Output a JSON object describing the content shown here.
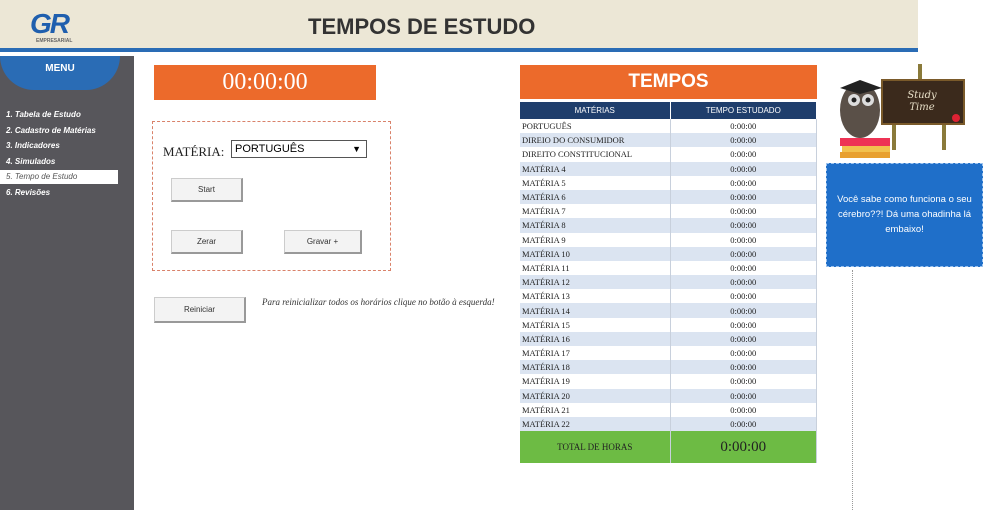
{
  "header": {
    "logo": "GR",
    "logo_sub": "EMPRESARIAL",
    "title": "TEMPOS DE ESTUDO",
    "accent": "#2a6cb5"
  },
  "sidebar": {
    "menu_label": "MENU",
    "items": [
      {
        "label": "1. Tabela de Estudo"
      },
      {
        "label": "2. Cadastro de Matérias"
      },
      {
        "label": "3. Indicadores"
      },
      {
        "label": "4. Simulados"
      },
      {
        "label": "5. Tempo de Estudo",
        "active": true
      },
      {
        "label": "6. Revisões"
      }
    ]
  },
  "timer": {
    "value": "00:00:00",
    "color": "#ec6a2b"
  },
  "controls": {
    "materia_label": "MATÉRIA:",
    "materia_selected": "PORTUGUÊS",
    "start": "Start",
    "zerar": "Zerar",
    "gravar": "Gravar +",
    "reiniciar": "Reiniciar",
    "reset_note": "Para reinicializar  todos os horários clique no botão à esquerda!"
  },
  "tempos": {
    "title": "TEMPOS",
    "columns": [
      "MATÉRIAS",
      "TEMPO ESTUDADO"
    ],
    "rows": [
      [
        "PORTUGUÊS",
        "0:00:00"
      ],
      [
        "DIREIO DO CONSUMIDOR",
        "0:00:00"
      ],
      [
        "DIREITO CONSTITUCIONAL",
        "0:00:00"
      ],
      [
        "MATÉRIA 4",
        "0:00:00"
      ],
      [
        "MATÉRIA 5",
        "0:00:00"
      ],
      [
        "MATÉRIA 6",
        "0:00:00"
      ],
      [
        "MATÉRIA 7",
        "0:00:00"
      ],
      [
        "MATÉRIA 8",
        "0:00:00"
      ],
      [
        "MATÉRIA 9",
        "0:00:00"
      ],
      [
        "MATÉRIA 10",
        "0:00:00"
      ],
      [
        "MATÉRIA 11",
        "0:00:00"
      ],
      [
        "MATÉRIA 12",
        "0:00:00"
      ],
      [
        "MATÉRIA 13",
        "0:00:00"
      ],
      [
        "MATÉRIA 14",
        "0:00:00"
      ],
      [
        "MATÉRIA 15",
        "0:00:00"
      ],
      [
        "MATÉRIA 16",
        "0:00:00"
      ],
      [
        "MATÉRIA 17",
        "0:00:00"
      ],
      [
        "MATÉRIA 18",
        "0:00:00"
      ],
      [
        "MATÉRIA 19",
        "0:00:00"
      ],
      [
        "MATÉRIA 20",
        "0:00:00"
      ],
      [
        "MATÉRIA 21",
        "0:00:00"
      ],
      [
        "MATÉRIA 22",
        "0:00:00"
      ]
    ],
    "total_label": "TOTAL DE HORAS",
    "total_value": "0:00:00"
  },
  "illustration": {
    "board_text": "Study Time"
  },
  "info_box": {
    "text": "Você sabe como funciona o seu cérebro??! Dá uma ohadinha lá embaixo!"
  }
}
